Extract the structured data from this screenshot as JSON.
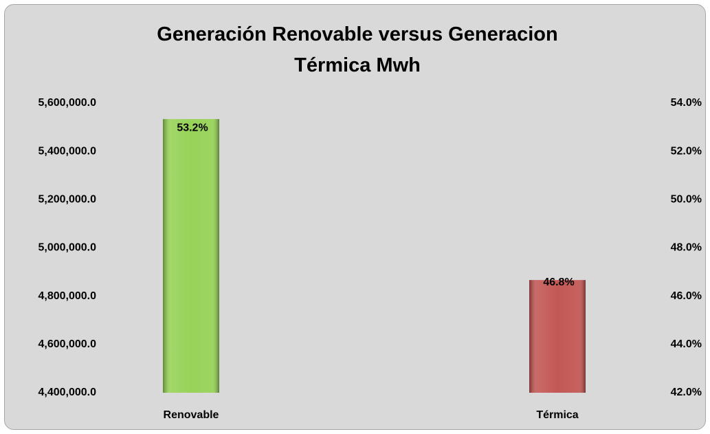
{
  "chart_data": {
    "type": "bar",
    "title": "Generación Renovable versus Generacion Térmica Mwh",
    "categories": [
      "Renovable",
      "Térmica"
    ],
    "series": [
      {
        "colors": [
          "#92d050",
          "#c0504d"
        ],
        "values": [
          5534000,
          4867000
        ]
      },
      {
        "axis": "y2",
        "values": [
          53.2,
          46.8
        ],
        "value_labels": [
          "53.2%",
          "46.8%"
        ]
      }
    ],
    "ylim": [
      4400000,
      5600000
    ],
    "yticks": [
      {
        "value": 4400000,
        "label": "4,400,000.0"
      },
      {
        "value": 4600000,
        "label": "4,600,000.0"
      },
      {
        "value": 4800000,
        "label": "4,800,000.0"
      },
      {
        "value": 5000000,
        "label": "5,000,000.0"
      },
      {
        "value": 5200000,
        "label": "5,200,000.0"
      },
      {
        "value": 5400000,
        "label": "5,400,000.0"
      },
      {
        "value": 5600000,
        "label": "5,600,000.0"
      }
    ],
    "y2lim": [
      42,
      54
    ],
    "y2ticks": [
      {
        "value": 42,
        "label": "42.0%"
      },
      {
        "value": 44,
        "label": "44.0%"
      },
      {
        "value": 46,
        "label": "46.0%"
      },
      {
        "value": 48,
        "label": "48.0%"
      },
      {
        "value": 50,
        "label": "50.0%"
      },
      {
        "value": 52,
        "label": "52.0%"
      },
      {
        "value": 54,
        "label": "54.0%"
      }
    ],
    "grid": false
  }
}
